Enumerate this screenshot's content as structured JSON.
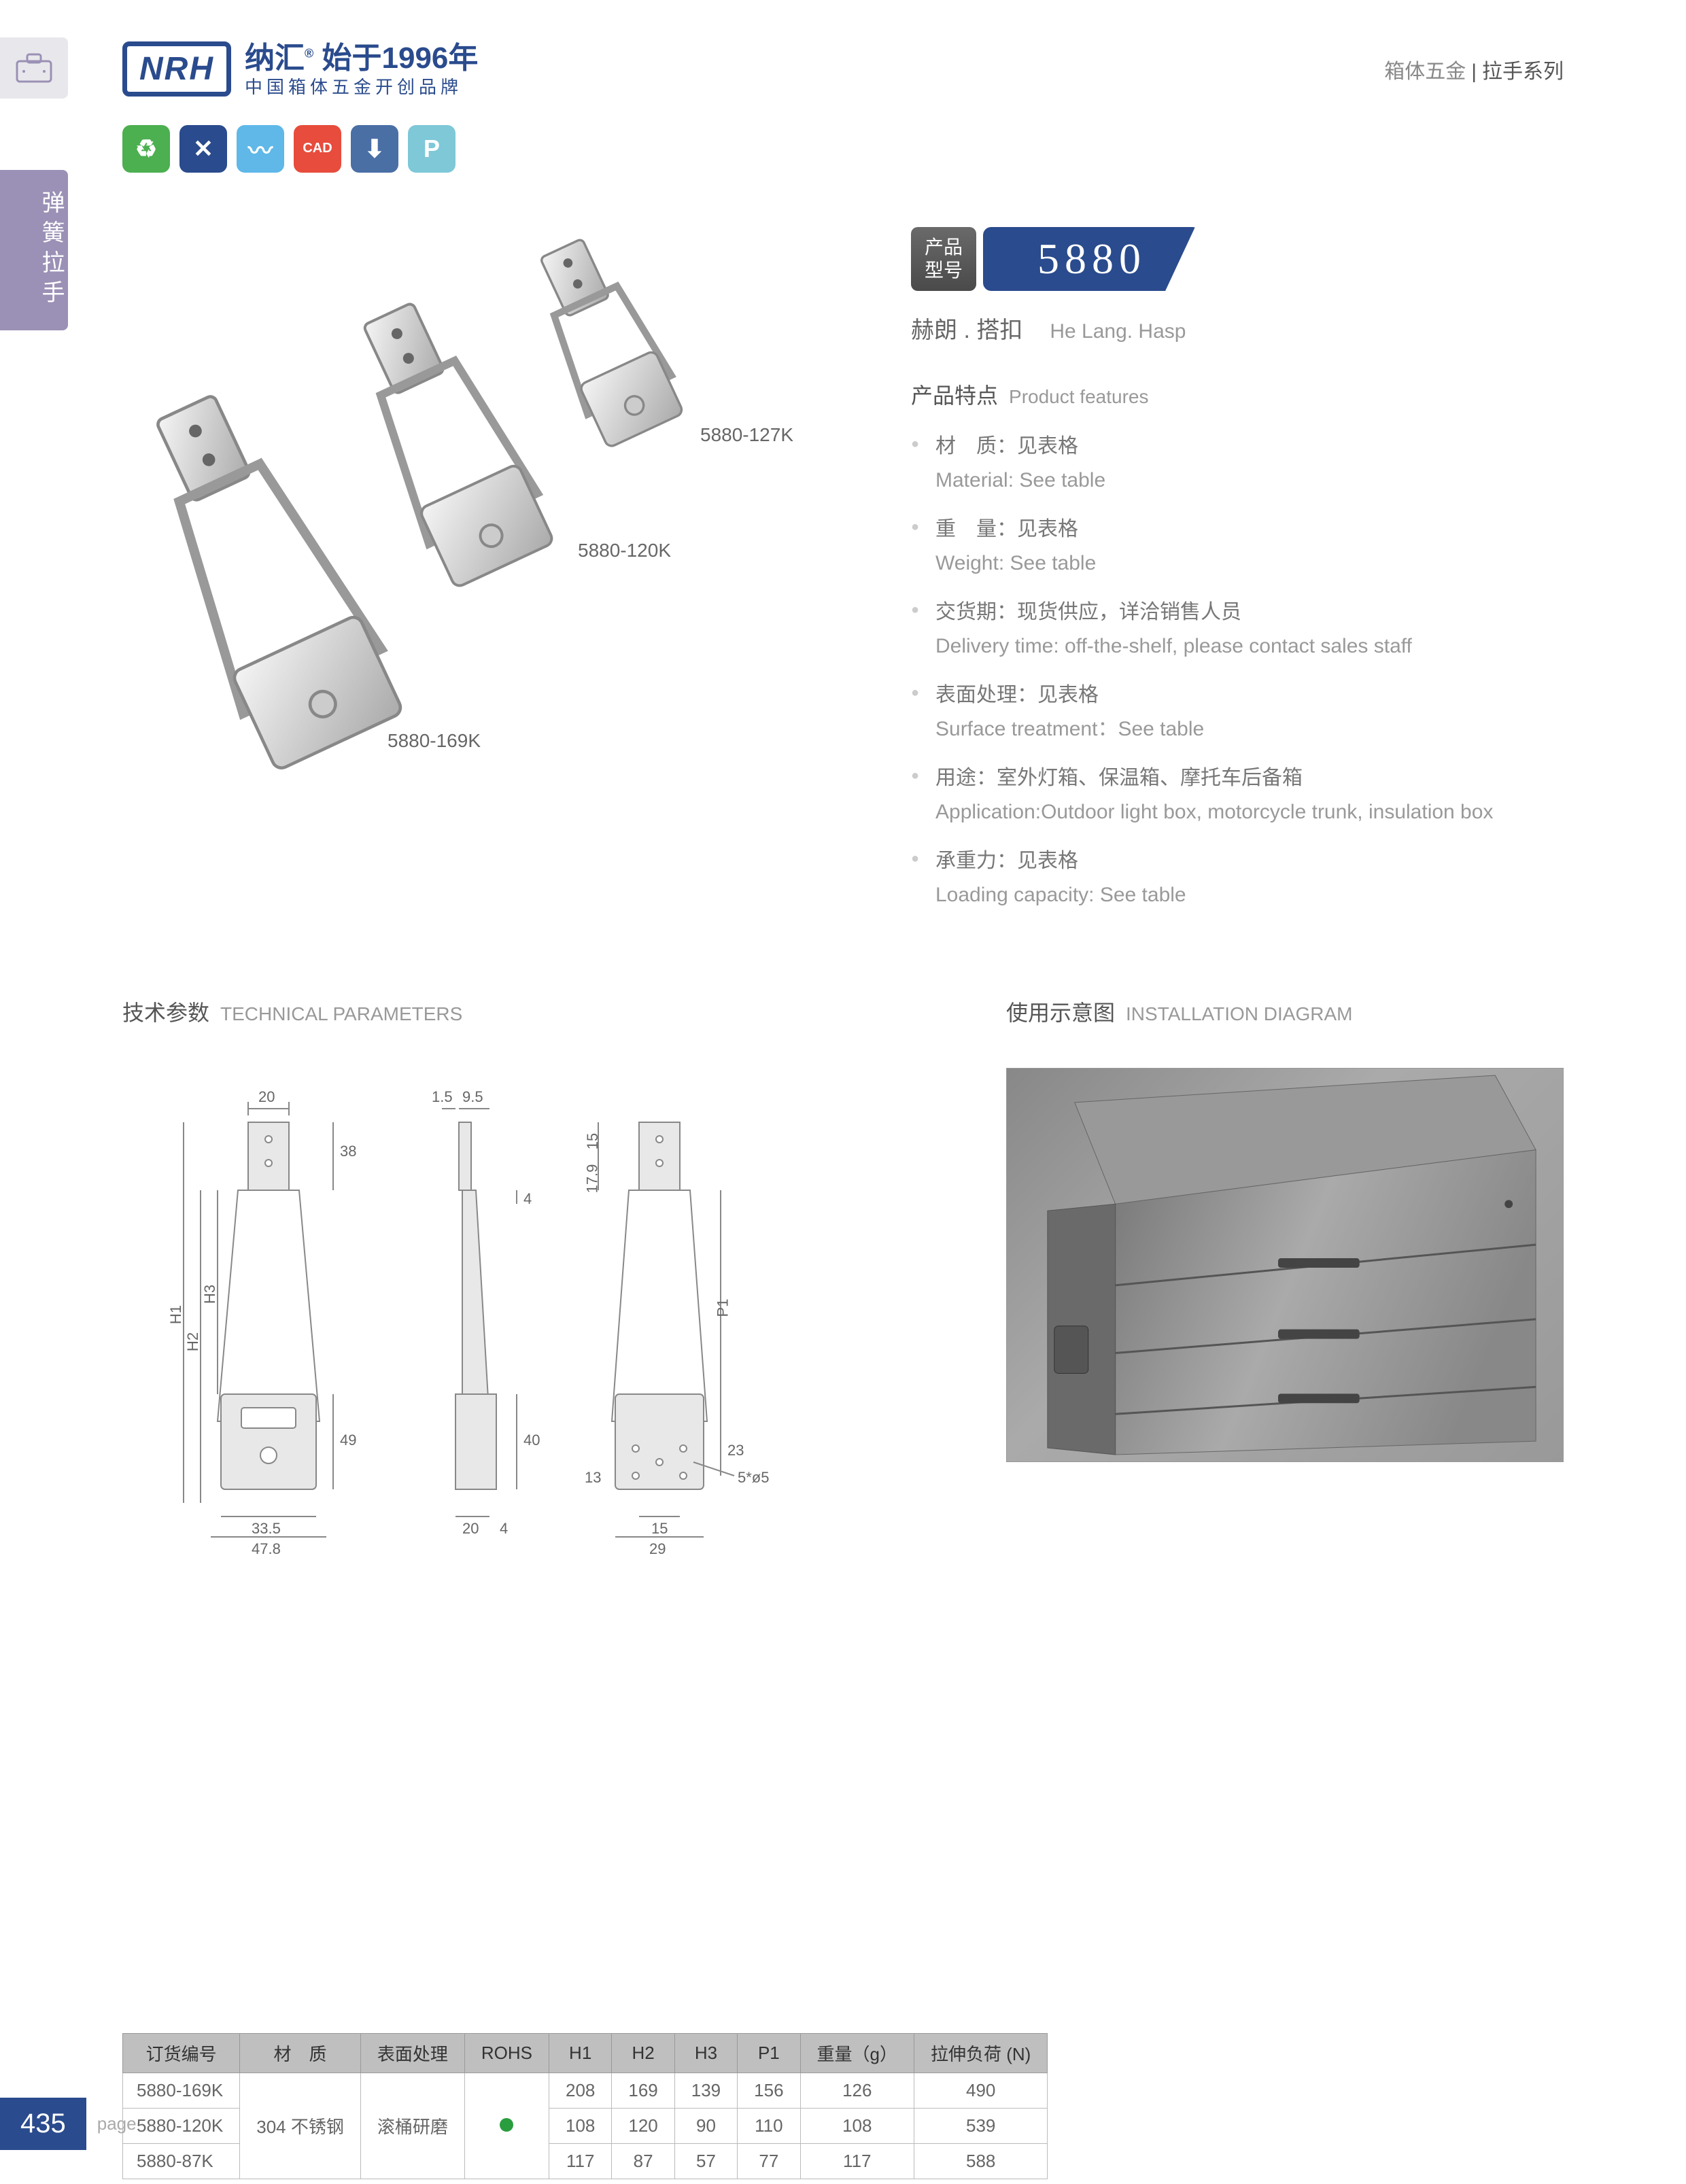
{
  "header": {
    "logo": "NRH",
    "brand_cn": "纳汇",
    "brand_since": "始于1996年",
    "brand_sub": "中国箱体五金开创品牌",
    "category1": "箱体五金",
    "category2": "拉手系列"
  },
  "side_tab": "弹簧拉手",
  "icon_badges": [
    {
      "color": "#4caf50",
      "glyph": "♻"
    },
    {
      "color": "#2a4b8d",
      "glyph": "✕"
    },
    {
      "color": "#5fb8e8",
      "glyph": "〰"
    },
    {
      "color": "#e74c3c",
      "glyph": "CAD"
    },
    {
      "color": "#4a6fa5",
      "glyph": "⬇"
    },
    {
      "color": "#7ec8d8",
      "glyph": "P"
    }
  ],
  "hasp_labels": {
    "a": "5880-127K",
    "b": "5880-120K",
    "c": "5880-169K"
  },
  "model": {
    "label_l1": "产品",
    "label_l2": "型号",
    "number": "5880"
  },
  "product_name": {
    "cn": "赫朗 . 搭扣",
    "en": "He Lang. Hasp"
  },
  "features_title": {
    "cn": "产品特点",
    "en": "Product features"
  },
  "features": [
    {
      "cn": "材　质：见表格",
      "en": "Material: See table"
    },
    {
      "cn": "重　量：见表格",
      "en": "Weight: See table"
    },
    {
      "cn": "交货期：现货供应，详洽销售人员",
      "en": "Delivery time: off-the-shelf, please contact sales staff"
    },
    {
      "cn": "表面处理：见表格",
      "en": "Surface treatment：See table"
    },
    {
      "cn": "用途：室外灯箱、保温箱、摩托车后备箱",
      "en": "Application:Outdoor light box, motorcycle trunk, insulation box"
    },
    {
      "cn": "承重力：见表格",
      "en": "Loading capacity: See table"
    }
  ],
  "tech_title": {
    "cn": "技术参数",
    "en": "TECHNICAL PARAMETERS"
  },
  "install_title": {
    "cn": "使用示意图",
    "en": "INSTALLATION DIAGRAM"
  },
  "dimensions": {
    "top1": "20",
    "top2": "1.5",
    "top3": "9.5",
    "v1": "38",
    "v2": "4",
    "v3": "15",
    "v4": "17.9",
    "h1": "H1",
    "h2": "H2",
    "h3": "H3",
    "p1": "P1",
    "v5": "49",
    "v6": "40",
    "v7": "23",
    "v8": "13",
    "b1": "33.5",
    "b2": "47.8",
    "b3": "20",
    "b4": "4",
    "b5": "15",
    "b6": "29",
    "hole": "5*ø5"
  },
  "table": {
    "headers": [
      "订货编号",
      "材　质",
      "表面处理",
      "ROHS",
      "H1",
      "H2",
      "H3",
      "P1",
      "重量（g）",
      "拉伸负荷 (N)"
    ],
    "rows": [
      [
        "5880-169K",
        "",
        "",
        "",
        "208",
        "169",
        "139",
        "156",
        "126",
        "490"
      ],
      [
        "5880-120K",
        "304 不锈钢",
        "滚桶研磨",
        "dot",
        "108",
        "120",
        "90",
        "110",
        "108",
        "539"
      ],
      [
        "5880-87K",
        "",
        "",
        "",
        "117",
        "87",
        "57",
        "77",
        "117",
        "588"
      ]
    ],
    "material": "304 不锈钢",
    "surface": "滚桶研磨"
  },
  "footer": {
    "pagenum": "435",
    "pagetext": "page"
  }
}
